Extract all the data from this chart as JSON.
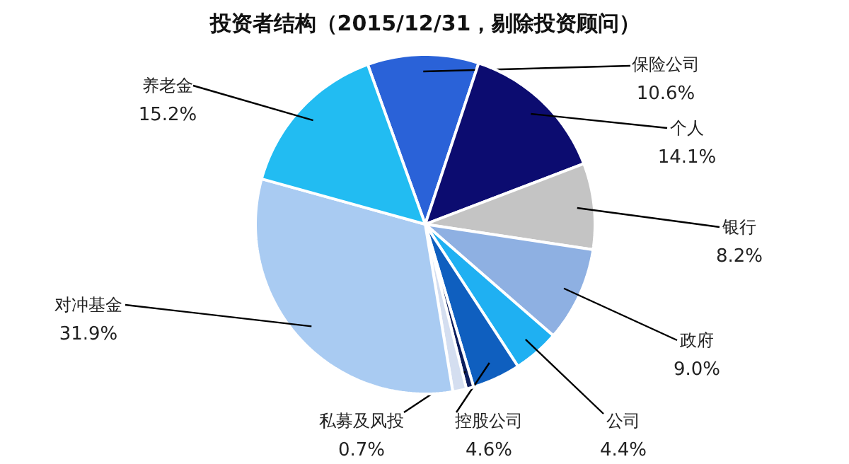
{
  "chart_data": {
    "type": "pie",
    "title": "投资者结构（2015/12/31，剔除投资顾问）",
    "categories": [
      "保险公司",
      "个人",
      "银行",
      "政府",
      "公司",
      "控股公司",
      "私募及风投",
      null,
      "对冲基金",
      "养老金"
    ],
    "values": [
      10.6,
      14.1,
      8.2,
      9.0,
      4.4,
      4.6,
      0.7,
      1.3,
      31.9,
      15.2
    ],
    "value_labels": [
      "10.6%",
      "14.1%",
      "8.2%",
      "9.0%",
      "4.4%",
      "4.6%",
      "0.7%",
      null,
      "31.9%",
      "15.2%"
    ],
    "colors": [
      "#2a62d8",
      "#0c0c70",
      "#c4c4c4",
      "#8eb0e2",
      "#1fb0f2",
      "#0f5fbf",
      "#0d1f5e",
      "#d4def0",
      "#a9cbf2",
      "#22bcf2"
    ]
  }
}
